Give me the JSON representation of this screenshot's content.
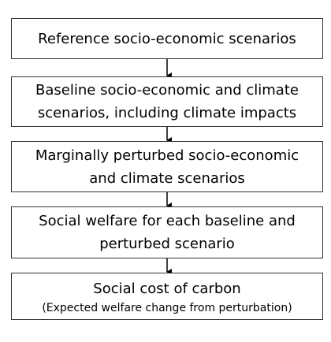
{
  "nodes": [
    {
      "lines": [
        "Reference socio-economic scenarios"
      ]
    },
    {
      "lines": [
        "Baseline socio-economic and climate",
        "scenarios, including climate impacts"
      ]
    },
    {
      "lines": [
        "Marginally perturbed socio-economic",
        "and climate scenarios"
      ]
    },
    {
      "lines": [
        "Social welfare for each baseline and",
        "perturbed scenario"
      ]
    },
    {
      "lines": [
        "Social cost of carbon"
      ],
      "note": "(Expected welfare change from perturbation)"
    }
  ]
}
